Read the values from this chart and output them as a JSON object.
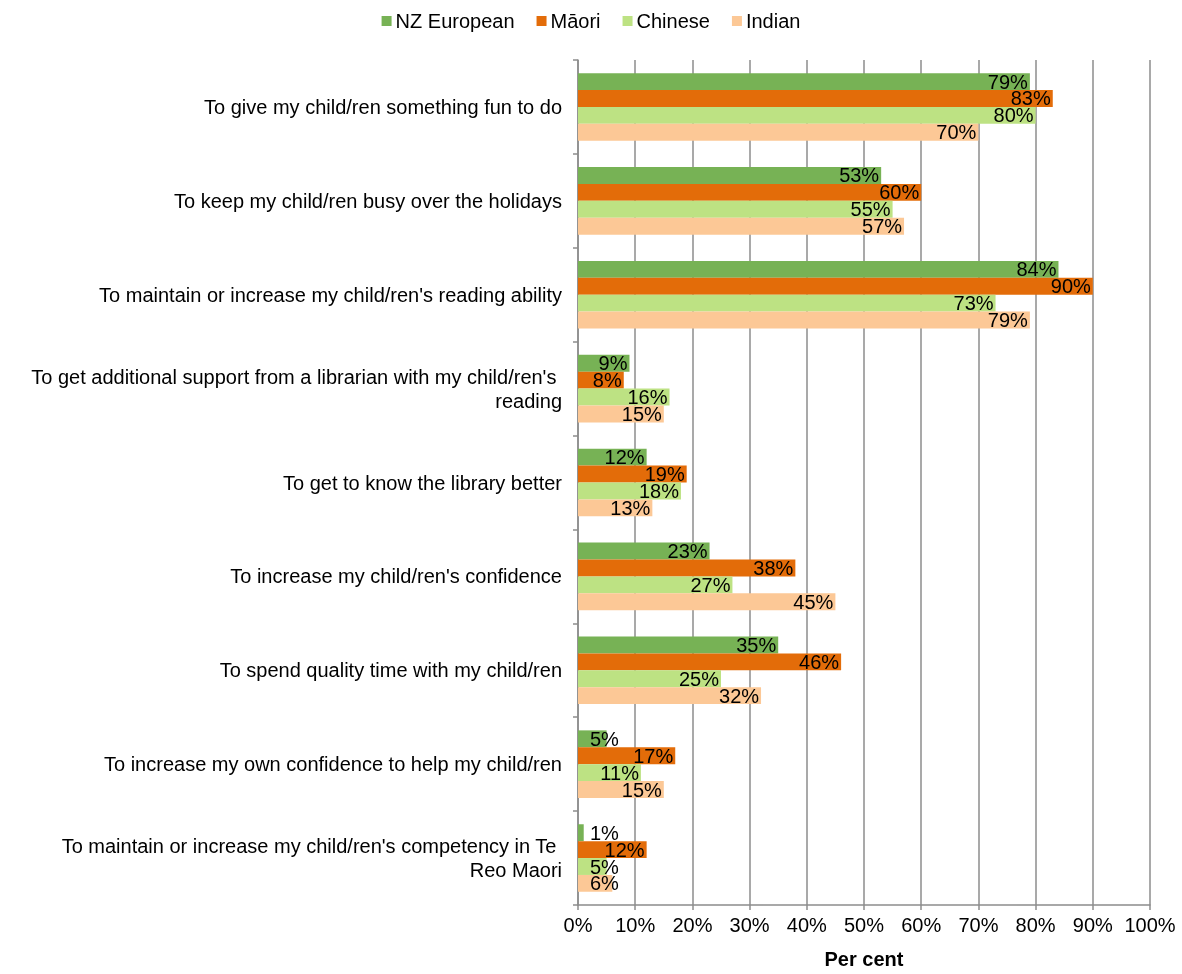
{
  "chart_data": {
    "type": "bar",
    "orientation": "horizontal",
    "xlabel": "Per cent",
    "categories": [
      "To give my child/ren something fun to do",
      "To keep my child/ren busy over the holidays",
      "To maintain or increase my child/ren's reading ability",
      "To get additional support from a librarian with my child/ren's reading",
      "To get to know the library better",
      "To increase my child/ren's confidence",
      "To spend quality time with my child/ren",
      "To increase my own confidence to help my child/ren",
      "To maintain or increase my child/ren's competency in Te Reo Maori"
    ],
    "series": [
      {
        "name": "NZ European",
        "color": "#77b255",
        "values": [
          79,
          53,
          84,
          9,
          12,
          23,
          35,
          5,
          1
        ],
        "value_labels": [
          "79%",
          "53%",
          "84%",
          "9%",
          "12%",
          "23%",
          "35%",
          "5%",
          "1%"
        ]
      },
      {
        "name": "Māori",
        "color": "#e36c09",
        "values": [
          83,
          60,
          90,
          8,
          19,
          38,
          46,
          17,
          12
        ],
        "value_labels": [
          "83%",
          "60%",
          "90%",
          "8%",
          "19%",
          "38%",
          "46%",
          "17%",
          "12%"
        ]
      },
      {
        "name": "Chinese",
        "color": "#bde283",
        "values": [
          80,
          55,
          73,
          16,
          18,
          27,
          25,
          11,
          5
        ],
        "value_labels": [
          "80%",
          "55%",
          "73%",
          "16%",
          "18%",
          "27%",
          "25%",
          "11%",
          "5%"
        ]
      },
      {
        "name": "Indian",
        "color": "#fcc896",
        "values": [
          70,
          57,
          79,
          15,
          13,
          45,
          32,
          15,
          6
        ],
        "value_labels": [
          "70%",
          "57%",
          "79%",
          "15%",
          "13%",
          "45%",
          "32%",
          "15%",
          "6%"
        ]
      }
    ],
    "xlim": [
      0,
      100
    ],
    "xticks": [
      {
        "value": 0,
        "label": "0%"
      },
      {
        "value": 10,
        "label": "10%"
      },
      {
        "value": 20,
        "label": "20%"
      },
      {
        "value": 30,
        "label": "30%"
      },
      {
        "value": 40,
        "label": "40%"
      },
      {
        "value": 50,
        "label": "50%"
      },
      {
        "value": 60,
        "label": "60%"
      },
      {
        "value": 70,
        "label": "70%"
      },
      {
        "value": 80,
        "label": "80%"
      },
      {
        "value": 90,
        "label": "90%"
      },
      {
        "value": 100,
        "label": "100%"
      }
    ],
    "grid": "x",
    "legend": "top"
  }
}
